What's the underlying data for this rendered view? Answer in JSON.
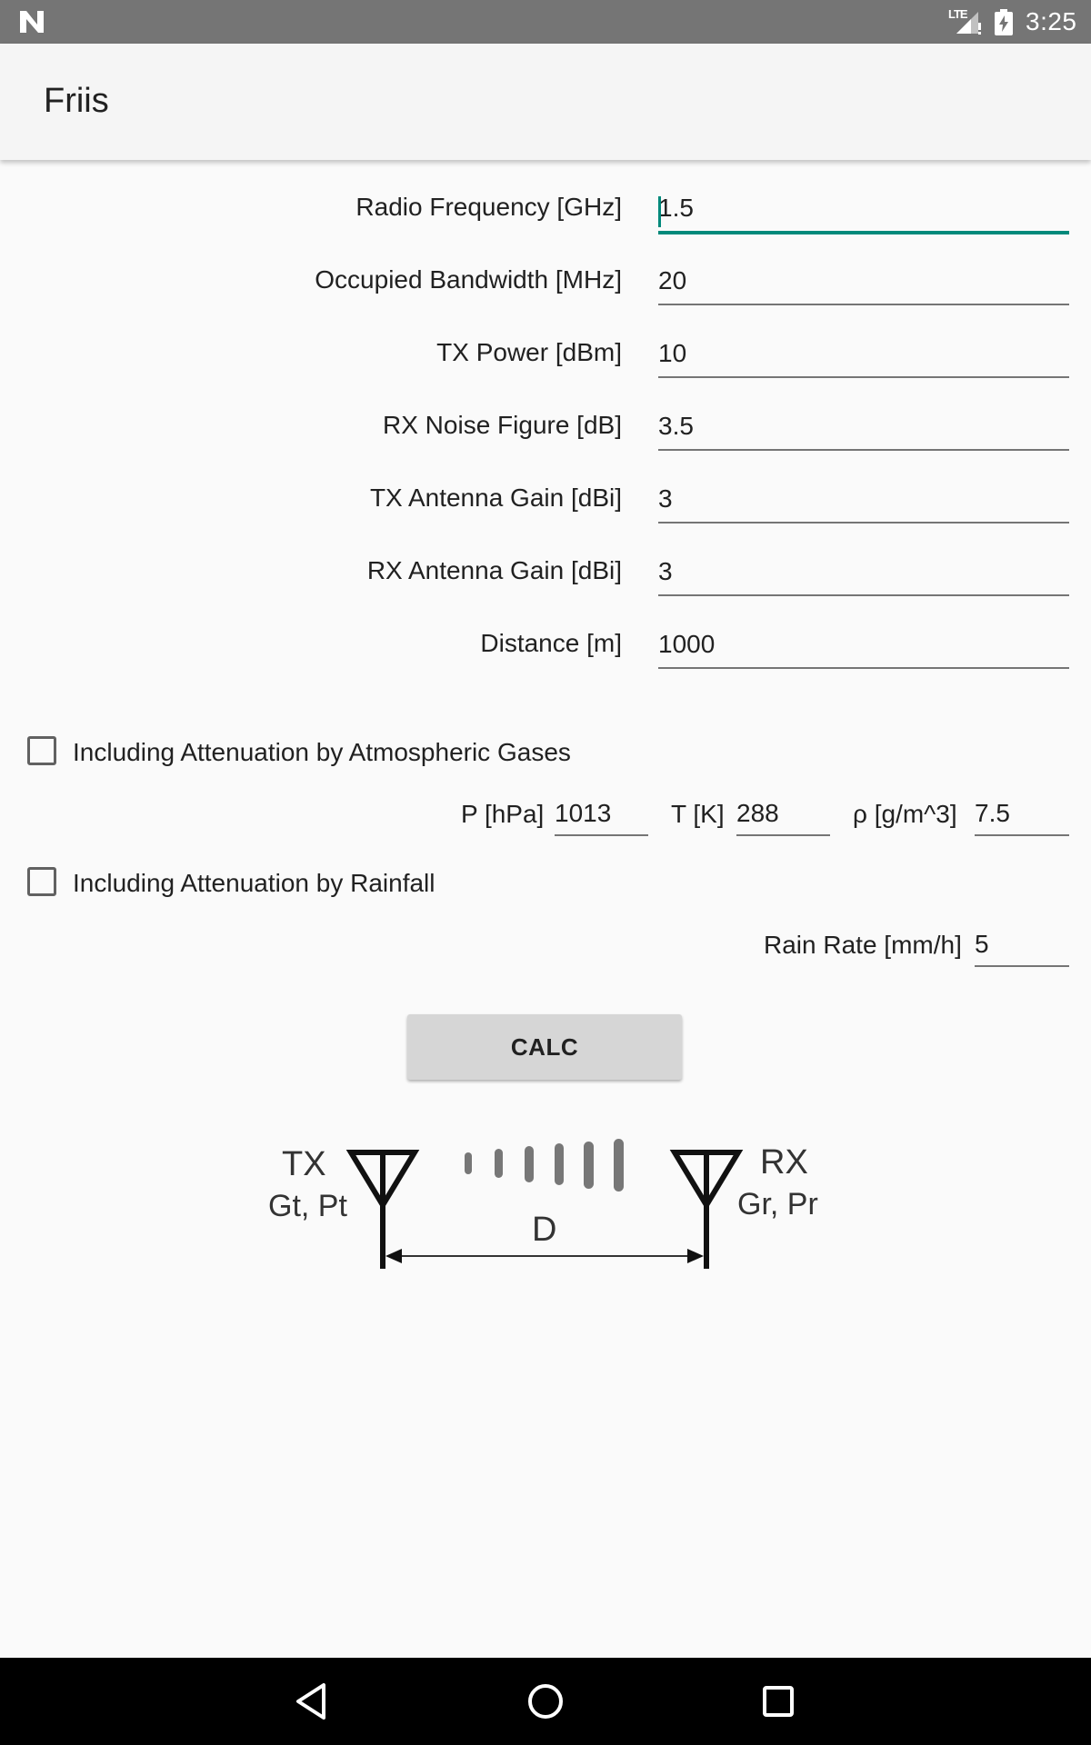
{
  "status_bar": {
    "network_label": "LTE",
    "time": "3:25"
  },
  "app_bar": {
    "title": "Friis"
  },
  "form": {
    "fields": [
      {
        "label": "Radio Frequency [GHz]",
        "value": "1.5"
      },
      {
        "label": "Occupied Bandwidth [MHz]",
        "value": "20"
      },
      {
        "label": "TX Power [dBm]",
        "value": "10"
      },
      {
        "label": "RX Noise Figure [dB]",
        "value": "3.5"
      },
      {
        "label": "TX Antenna Gain [dBi]",
        "value": "3"
      },
      {
        "label": "RX Antenna Gain [dBi]",
        "value": "3"
      },
      {
        "label": "Distance [m]",
        "value": "1000"
      }
    ]
  },
  "atmospheric": {
    "checkbox_label": "Including Attenuation by Atmospheric Gases",
    "checked": false,
    "pressure_label": "P [hPa]",
    "pressure_value": "1013",
    "temperature_label": "T [K]",
    "temperature_value": "288",
    "density_label": "ρ [g/m^3]",
    "density_value": "7.5"
  },
  "rainfall": {
    "checkbox_label": "Including Attenuation by Rainfall",
    "checked": false,
    "rain_rate_label": "Rain Rate [mm/h]",
    "rain_rate_value": "5"
  },
  "calc_button": {
    "label": "CALC"
  },
  "diagram": {
    "tx_label": "TX",
    "tx_params": "Gt, Pt",
    "rx_label": "RX",
    "rx_params": "Gr, Pr",
    "distance_label": "D"
  },
  "colors": {
    "accent": "#00897b",
    "status_bar": "#757575",
    "app_bar": "#f5f5f5",
    "background": "#fafafa",
    "button": "#d6d6d6",
    "nav_bar": "#000000"
  },
  "icons": {
    "status_left": "n-logo-icon",
    "signal": "signal-icon",
    "battery": "battery-charging-icon",
    "nav_back": "back-icon",
    "nav_home": "home-icon",
    "nav_recents": "recents-icon"
  }
}
